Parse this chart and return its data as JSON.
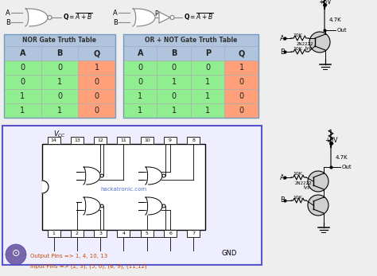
{
  "bg_color": "#eeeeee",
  "nor_table": {
    "header": [
      "A",
      "B",
      "Q"
    ],
    "rows": [
      [
        "0",
        "0",
        "1"
      ],
      [
        "0",
        "1",
        "0"
      ],
      [
        "1",
        "0",
        "0"
      ],
      [
        "1",
        "1",
        "0"
      ]
    ],
    "title": "NOR Gate Truth Table",
    "col_colors": [
      "#90ee90",
      "#90ee90",
      "#ffa07a"
    ],
    "header_bg": "#b0c4de"
  },
  "or_not_table": {
    "header": [
      "A",
      "B",
      "P",
      "Q"
    ],
    "rows": [
      [
        "0",
        "0",
        "0",
        "1"
      ],
      [
        "0",
        "1",
        "1",
        "0"
      ],
      [
        "1",
        "0",
        "1",
        "0"
      ],
      [
        "1",
        "1",
        "1",
        "0"
      ]
    ],
    "title": "OR + NOT Gate Truth Table",
    "col_colors": [
      "#90ee90",
      "#90ee90",
      "#90ee90",
      "#ffa07a"
    ],
    "header_bg": "#b0c4de"
  },
  "ic_box_color": "#5555cc",
  "ic_bg": "#eeeeff",
  "vcc_label": "VCC",
  "gnd_label": "GND",
  "output_pins_label": "Output Pins => 1, 4, 10, 13",
  "input_pins_label": "Input Pins => (2, 3), (5, 6), (8, 9), (11,12)",
  "watermark": "hackatronic.com"
}
